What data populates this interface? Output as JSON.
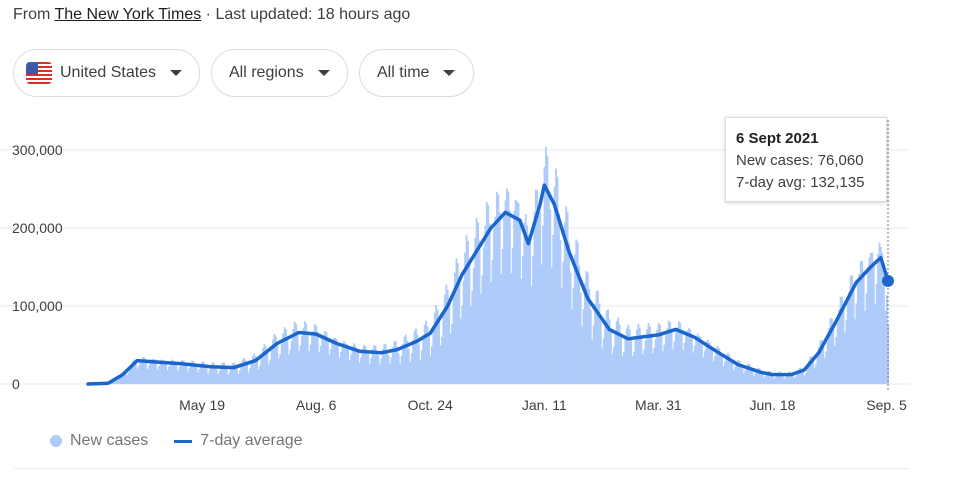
{
  "header": {
    "prefix": "From",
    "source_name": "The New York Times",
    "updated": "· Last updated: 18 hours ago"
  },
  "filters": {
    "country": "United States",
    "region": "All regions",
    "time": "All time",
    "flag_icon": "us-flag-icon",
    "dropdown_icon": "caret-down-icon"
  },
  "tooltip": {
    "date": "6 Sept 2021",
    "new_cases": "New cases: 76,060",
    "avg": "7-day avg: 132,135"
  },
  "legend": {
    "new_cases": "New cases",
    "avg": "7-day average"
  },
  "colors": {
    "bars": "#aecbfa",
    "line": "#1a66cc",
    "grid": "#e8eaed"
  },
  "chart_data": {
    "type": "bar",
    "title": "",
    "xlabel": "",
    "ylabel": "",
    "ylim": [
      0,
      320000
    ],
    "y_ticks": [
      {
        "value": 0,
        "label": "0"
      },
      {
        "value": 100000,
        "label": "100,000"
      },
      {
        "value": 200000,
        "label": "200,000"
      },
      {
        "value": 300000,
        "label": "300,000"
      }
    ],
    "x_ticks": [
      {
        "date": "2020-05-19",
        "label": "May 19"
      },
      {
        "date": "2020-08-06",
        "label": "Aug. 6"
      },
      {
        "date": "2020-10-24",
        "label": "Oct. 24"
      },
      {
        "date": "2021-01-11",
        "label": "Jan. 11"
      },
      {
        "date": "2021-03-31",
        "label": "Mar. 31"
      },
      {
        "date": "2021-06-18",
        "label": "Jun. 18"
      },
      {
        "date": "2021-09-05",
        "label": "Sep. 5"
      }
    ],
    "x_range": [
      "2020-03-01",
      "2021-09-06"
    ],
    "grid": true,
    "legend_position": "bottom-left",
    "series": [
      {
        "name": "7-day average",
        "type": "line",
        "points": [
          [
            "2020-03-01",
            0
          ],
          [
            "2020-03-15",
            1000
          ],
          [
            "2020-03-25",
            12000
          ],
          [
            "2020-04-04",
            30000
          ],
          [
            "2020-04-20",
            28000
          ],
          [
            "2020-05-05",
            26000
          ],
          [
            "2020-05-25",
            22000
          ],
          [
            "2020-06-10",
            21000
          ],
          [
            "2020-06-25",
            30000
          ],
          [
            "2020-07-10",
            52000
          ],
          [
            "2020-07-25",
            66000
          ],
          [
            "2020-08-06",
            64000
          ],
          [
            "2020-08-20",
            52000
          ],
          [
            "2020-09-05",
            42000
          ],
          [
            "2020-09-20",
            40000
          ],
          [
            "2020-10-01",
            44000
          ],
          [
            "2020-10-15",
            55000
          ],
          [
            "2020-10-24",
            65000
          ],
          [
            "2020-11-05",
            100000
          ],
          [
            "2020-11-15",
            140000
          ],
          [
            "2020-11-25",
            170000
          ],
          [
            "2020-12-05",
            200000
          ],
          [
            "2020-12-15",
            220000
          ],
          [
            "2020-12-25",
            210000
          ],
          [
            "2020-12-31",
            180000
          ],
          [
            "2021-01-08",
            230000
          ],
          [
            "2021-01-11",
            255000
          ],
          [
            "2021-01-18",
            230000
          ],
          [
            "2021-01-28",
            170000
          ],
          [
            "2021-02-10",
            110000
          ],
          [
            "2021-02-25",
            70000
          ],
          [
            "2021-03-10",
            58000
          ],
          [
            "2021-03-31",
            63000
          ],
          [
            "2021-04-12",
            70000
          ],
          [
            "2021-04-25",
            60000
          ],
          [
            "2021-05-10",
            42000
          ],
          [
            "2021-05-25",
            25000
          ],
          [
            "2021-06-10",
            15000
          ],
          [
            "2021-06-18",
            12000
          ],
          [
            "2021-07-01",
            12000
          ],
          [
            "2021-07-10",
            18000
          ],
          [
            "2021-07-20",
            40000
          ],
          [
            "2021-08-01",
            80000
          ],
          [
            "2021-08-15",
            130000
          ],
          [
            "2021-08-25",
            150000
          ],
          [
            "2021-09-01",
            162000
          ],
          [
            "2021-09-06",
            132135
          ]
        ]
      }
    ]
  }
}
